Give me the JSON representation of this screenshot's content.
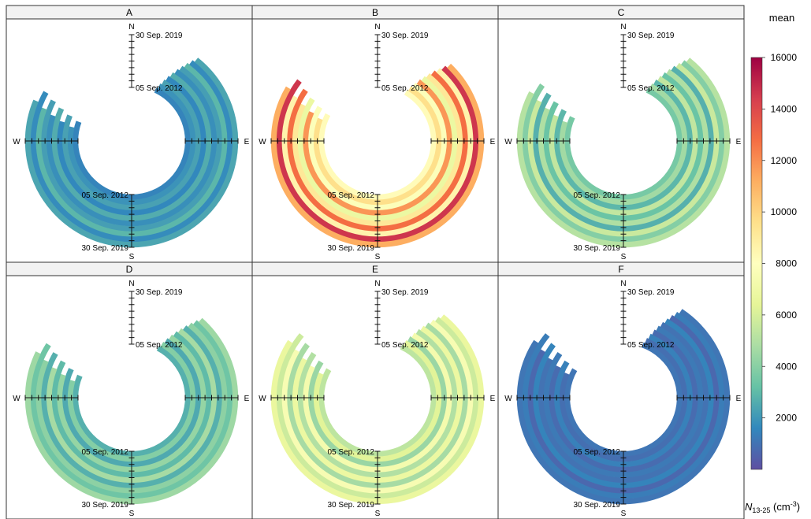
{
  "chart_data": {
    "type": "polar-annulus",
    "colorbar": {
      "title": "mean",
      "label_main": "N",
      "label_sub": "13-25",
      "label_unit": " (cm",
      "label_sup": "-3",
      "label_close": ")",
      "range": [
        0,
        16000
      ],
      "ticks": [
        2000,
        4000,
        6000,
        8000,
        10000,
        12000,
        14000,
        16000
      ],
      "palette": [
        "#5e4fa2",
        "#3288bd",
        "#66c2a5",
        "#abdda4",
        "#e6f598",
        "#ffffbf",
        "#fee08b",
        "#fdae61",
        "#f46d43",
        "#d53e4f",
        "#9e0142"
      ]
    },
    "time_axis": {
      "start": "05 Sep. 2012",
      "end": "30 Sep. 2019"
    },
    "directions": {
      "north": "N",
      "east": "E",
      "south": "S",
      "west": "W"
    },
    "panels": [
      {
        "label": "A",
        "ring_means": [
          1500,
          1900,
          2300,
          1600,
          2600,
          1800,
          2200,
          2900,
          1700,
          2400
        ],
        "west_extent_deg": 290,
        "north_extent_deg": 25
      },
      {
        "label": "B",
        "ring_means": [
          8200,
          9600,
          7800,
          11800,
          6800,
          9200,
          12800,
          8600,
          14600,
          11200
        ],
        "west_extent_deg": 298,
        "north_extent_deg": 30
      },
      {
        "label": "C",
        "ring_means": [
          3600,
          4600,
          2900,
          5400,
          3300,
          4900,
          2700,
          5600,
          3900,
          5100
        ],
        "west_extent_deg": 295,
        "north_extent_deg": 25
      },
      {
        "label": "D",
        "ring_means": [
          2700,
          3900,
          2500,
          4300,
          3000,
          4700,
          2700,
          4100,
          3400,
          4500
        ],
        "west_extent_deg": 293,
        "north_extent_deg": 28
      },
      {
        "label": "E",
        "ring_means": [
          5300,
          6300,
          4400,
          7300,
          5000,
          6800,
          4700,
          7500,
          5700,
          6700
        ],
        "west_extent_deg": 300,
        "north_extent_deg": 25
      },
      {
        "label": "F",
        "ring_means": [
          1100,
          900,
          1400,
          800,
          1200,
          1000,
          1500,
          700,
          1300,
          1100
        ],
        "west_extent_deg": 300,
        "north_extent_deg": 20
      }
    ]
  }
}
